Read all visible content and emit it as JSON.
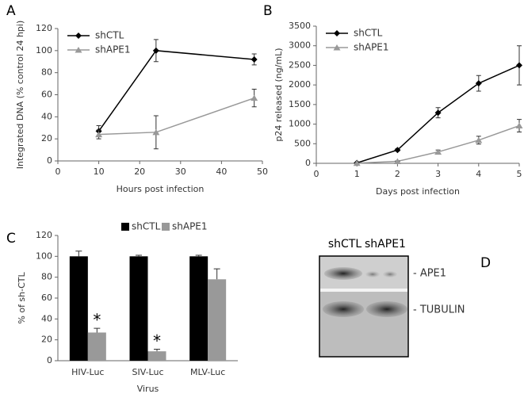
{
  "chart_data": [
    {
      "panel": "A",
      "type": "line",
      "xlabel": "Hours post infection",
      "ylabel": "Integrated DNA (% control 24 hpi)",
      "x": [
        10,
        24,
        48
      ],
      "series": [
        {
          "name": "shCTL",
          "color": "#000000",
          "marker": "diamond",
          "values": [
            27,
            100,
            92
          ],
          "errors": [
            5,
            10,
            5
          ]
        },
        {
          "name": "shAPE1",
          "color": "#999999",
          "marker": "triangle",
          "values": [
            24,
            26,
            57
          ],
          "errors": [
            4,
            15,
            8
          ]
        }
      ],
      "xlim": [
        0,
        50
      ],
      "xticks": [
        0,
        10,
        20,
        30,
        40,
        50
      ],
      "ylim": [
        0,
        120
      ],
      "yticks": [
        0,
        20,
        40,
        60,
        80,
        100,
        120
      ],
      "legend": "upper left"
    },
    {
      "panel": "B",
      "type": "line",
      "xlabel": "Days post infection",
      "ylabel": "p24 released (ng/mL)",
      "x": [
        1,
        2,
        3,
        4,
        5
      ],
      "series": [
        {
          "name": "shCTL",
          "color": "#000000",
          "marker": "diamond",
          "values": [
            10,
            340,
            1290,
            2040,
            2500
          ],
          "errors": [
            0,
            30,
            130,
            200,
            500
          ]
        },
        {
          "name": "shAPE1",
          "color": "#999999",
          "marker": "triangle",
          "values": [
            5,
            50,
            290,
            590,
            960
          ],
          "errors": [
            0,
            10,
            50,
            100,
            160
          ]
        }
      ],
      "xlim": [
        0,
        5
      ],
      "xticks": [
        0,
        1,
        2,
        3,
        4,
        5
      ],
      "ylim": [
        0,
        3500
      ],
      "yticks": [
        0,
        500,
        1000,
        1500,
        2000,
        2500,
        3000,
        3500
      ],
      "legend": "upper left"
    },
    {
      "panel": "C",
      "type": "bar",
      "xlabel": "Virus",
      "ylabel": "% of sh-CTL",
      "categories": [
        "HIV-Luc",
        "SIV-Luc",
        "MLV-Luc"
      ],
      "series": [
        {
          "name": "shCTL",
          "color": "#000000",
          "values": [
            100,
            100,
            100
          ],
          "errors": [
            5,
            1,
            1
          ]
        },
        {
          "name": "shAPE1",
          "color": "#999999",
          "values": [
            27,
            9,
            78
          ],
          "errors": [
            4,
            2,
            10
          ],
          "labels": [
            "*",
            "*",
            null
          ]
        }
      ],
      "ylim": [
        0,
        120
      ],
      "yticks": [
        0,
        20,
        40,
        60,
        80,
        100,
        120
      ],
      "legend": "top"
    }
  ],
  "blot": {
    "panel": "D",
    "columns": [
      "shCTL",
      "shAPE1"
    ],
    "bands": [
      "- APE1",
      "- TUBULIN"
    ]
  }
}
